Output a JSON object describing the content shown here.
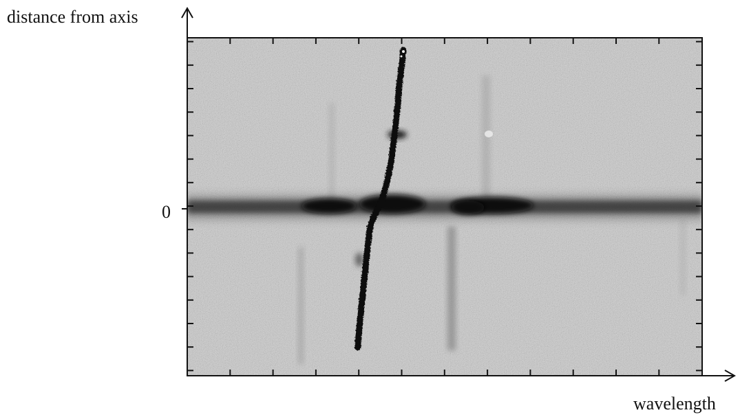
{
  "figure": {
    "y_axis_label": "distance from axis",
    "x_axis_label": "wavelength",
    "zero_tick_label": "0"
  }
}
